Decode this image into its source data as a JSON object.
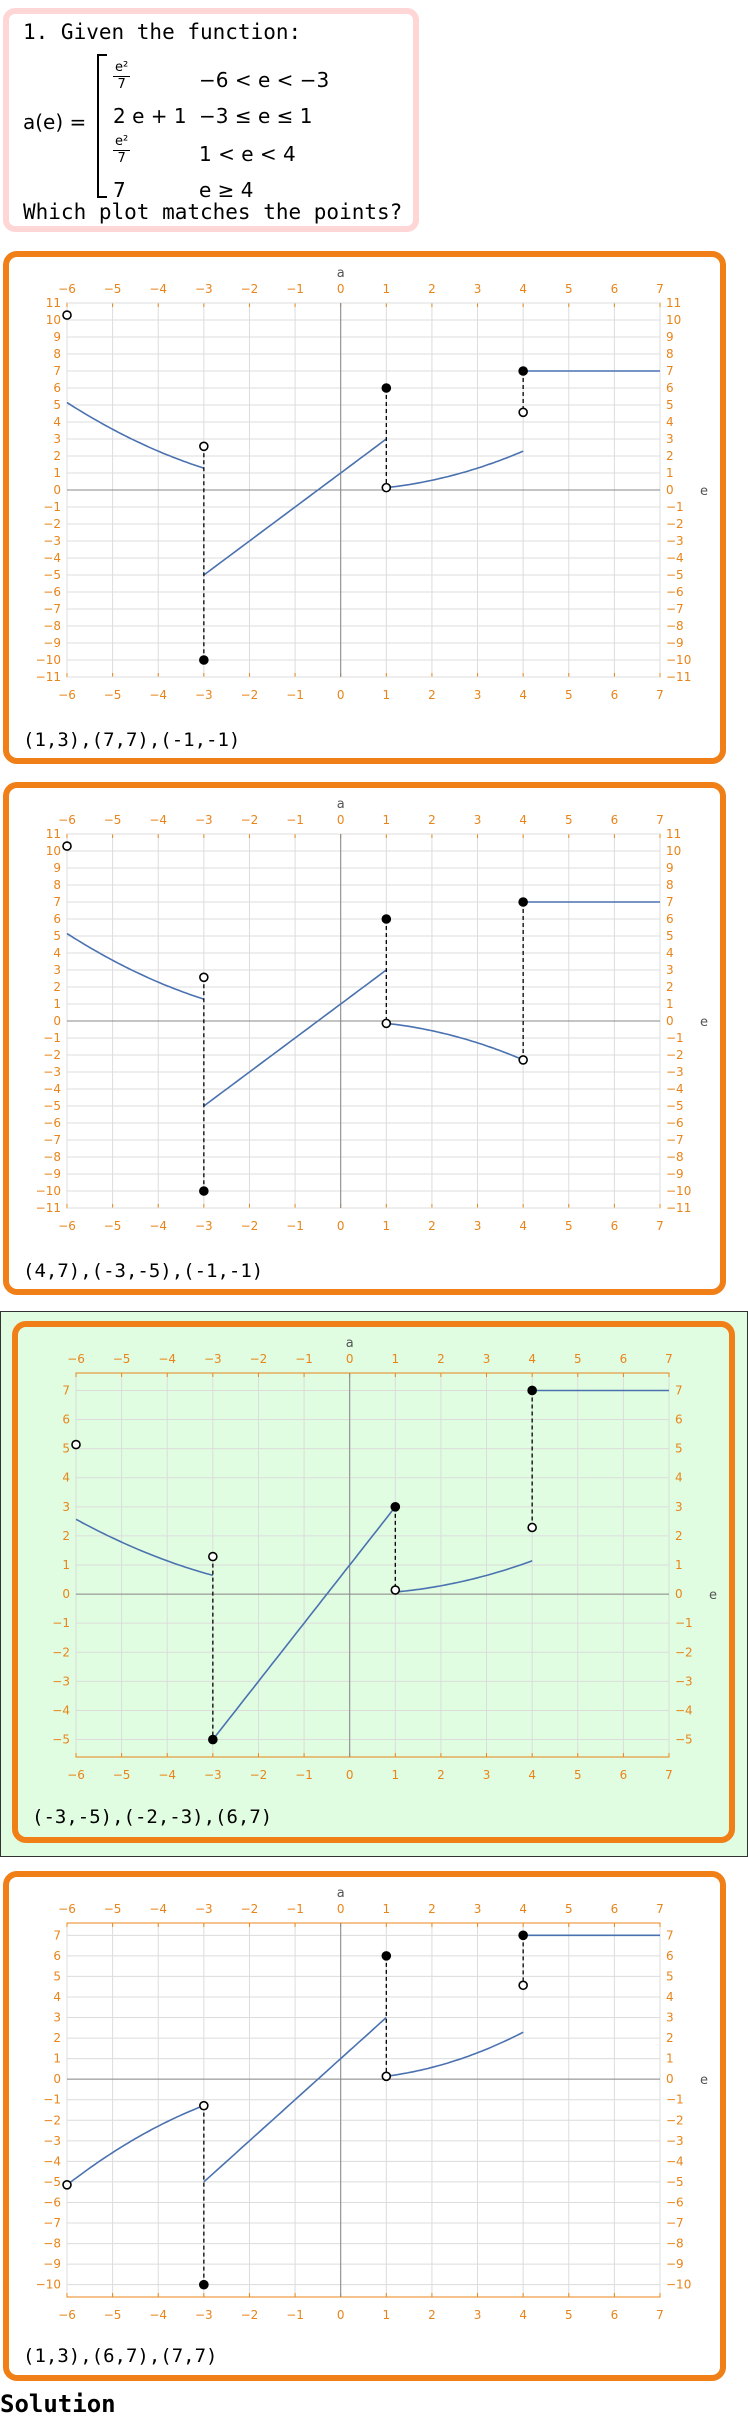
{
  "question": {
    "title": "1. Given the function:",
    "lhs": "a(e) =",
    "pieces": [
      {
        "expr_num": "e²",
        "expr_den": "7",
        "condition": "−6 < e < −3"
      },
      {
        "expr": "2 e + 1",
        "condition": "−3 ≤ e ≤ 1"
      },
      {
        "expr_num": "e²",
        "expr_den": "7",
        "condition": "1 < e < 4"
      },
      {
        "expr": "7",
        "condition": "e ≥ 4"
      }
    ],
    "prompt": "Which plot matches the points?"
  },
  "colors": {
    "accent": "#f07f17",
    "curve": "#4a72b0",
    "question_border": "#ffd6d6",
    "selected_bg": "#e1fde1",
    "tick_label": "#e8841a"
  },
  "plots": [
    {
      "id": "option-1",
      "label": "(1,3),(7,7),(-1,-1)",
      "x_axis_label": "e",
      "y_axis_label": "a",
      "xlim": [
        -6,
        7
      ],
      "ylim": [
        -11,
        11
      ],
      "ytick_step": 1,
      "segments": [
        {
          "kind": "curve",
          "f": "sq7",
          "from": -6,
          "to": -3
        },
        {
          "kind": "curve",
          "f": "lin",
          "from": -3,
          "to": 1
        },
        {
          "kind": "curve",
          "f": "sq7",
          "from": 1,
          "to": 4
        },
        {
          "kind": "curve",
          "f": "const7",
          "from": 4,
          "to": 7
        }
      ],
      "dashes": [
        [
          -3,
          2.57,
          -10
        ],
        [
          1,
          6,
          0.14
        ],
        [
          4,
          7,
          4.57
        ]
      ],
      "points": [
        {
          "x": -6,
          "y": 10.29,
          "filled": false
        },
        {
          "x": -3,
          "y": 2.57,
          "filled": false
        },
        {
          "x": -3,
          "y": -10,
          "filled": true
        },
        {
          "x": 1,
          "y": 6,
          "filled": true
        },
        {
          "x": 1,
          "y": 0.14,
          "filled": false
        },
        {
          "x": 4,
          "y": 4.57,
          "filled": false
        },
        {
          "x": 4,
          "y": 7,
          "filled": true
        }
      ]
    },
    {
      "id": "option-2",
      "label": "(4,7),(-3,-5),(-1,-1)",
      "x_axis_label": "e",
      "y_axis_label": "a",
      "xlim": [
        -6,
        7
      ],
      "ylim": [
        -11,
        11
      ],
      "ytick_step": 1,
      "segments": [
        {
          "kind": "curve",
          "f": "sq7",
          "from": -6,
          "to": -3
        },
        {
          "kind": "curve",
          "f": "lin",
          "from": -3,
          "to": 1
        },
        {
          "kind": "curve",
          "f": "negsq7",
          "from": 1,
          "to": 4
        },
        {
          "kind": "curve",
          "f": "const7",
          "from": 4,
          "to": 7
        }
      ],
      "dashes": [
        [
          -3,
          2.57,
          -10
        ],
        [
          1,
          6,
          -0.14
        ],
        [
          4,
          7,
          -2.29
        ]
      ],
      "points": [
        {
          "x": -6,
          "y": 10.29,
          "filled": false
        },
        {
          "x": -3,
          "y": 2.57,
          "filled": false
        },
        {
          "x": -3,
          "y": -10,
          "filled": true
        },
        {
          "x": 1,
          "y": 6,
          "filled": true
        },
        {
          "x": 1,
          "y": -0.14,
          "filled": false
        },
        {
          "x": 4,
          "y": -2.29,
          "filled": false
        },
        {
          "x": 4,
          "y": 7,
          "filled": true
        }
      ]
    },
    {
      "id": "option-3",
      "label": "(-3,-5),(-2,-3),(6,7)",
      "x_axis_label": "e",
      "y_axis_label": "a",
      "xlim": [
        -6,
        7
      ],
      "ylim": [
        -5.6,
        7.6
      ],
      "ytick_step": 1,
      "segments": [
        {
          "kind": "curve",
          "f": "sq7",
          "from": -6,
          "to": -3,
          "scale": 0.5
        },
        {
          "kind": "curve",
          "f": "lin",
          "from": -3,
          "to": 1
        },
        {
          "kind": "curve",
          "f": "sq7",
          "from": 1,
          "to": 4,
          "scale": 0.5
        },
        {
          "kind": "curve",
          "f": "const7",
          "from": 4,
          "to": 7
        }
      ],
      "dashes": [
        [
          -3,
          1.29,
          -5
        ],
        [
          1,
          3,
          0.14
        ],
        [
          4,
          7,
          2.29
        ]
      ],
      "points": [
        {
          "x": -6,
          "y": 5.14,
          "filled": false
        },
        {
          "x": -3,
          "y": 1.29,
          "filled": false
        },
        {
          "x": -3,
          "y": -5,
          "filled": true
        },
        {
          "x": 1,
          "y": 3,
          "filled": true
        },
        {
          "x": 1,
          "y": 0.14,
          "filled": false
        },
        {
          "x": 4,
          "y": 2.29,
          "filled": false
        },
        {
          "x": 4,
          "y": 7,
          "filled": true
        }
      ]
    },
    {
      "id": "option-4",
      "label": "(1,3),(6,7),(7,7)",
      "x_axis_label": "e",
      "y_axis_label": "a",
      "xlim": [
        -6,
        7
      ],
      "ylim": [
        -10.6,
        7.6
      ],
      "ytick_step": 1,
      "segments": [
        {
          "kind": "curve",
          "f": "negsq7h",
          "from": -6,
          "to": -3
        },
        {
          "kind": "curve",
          "f": "lin",
          "from": -3,
          "to": 1
        },
        {
          "kind": "curve",
          "f": "sq7",
          "from": 1,
          "to": 4
        },
        {
          "kind": "curve",
          "f": "const7",
          "from": 4,
          "to": 7
        }
      ],
      "dashes": [
        [
          -3,
          -1.29,
          -10
        ],
        [
          1,
          6,
          0.14
        ],
        [
          4,
          7,
          4.57
        ]
      ],
      "points": [
        {
          "x": -6,
          "y": -5.14,
          "filled": false
        },
        {
          "x": -3,
          "y": -1.29,
          "filled": false
        },
        {
          "x": -3,
          "y": -10,
          "filled": true
        },
        {
          "x": 1,
          "y": 6,
          "filled": true
        },
        {
          "x": 1,
          "y": 0.14,
          "filled": false
        },
        {
          "x": 4,
          "y": 4.57,
          "filled": false
        },
        {
          "x": 4,
          "y": 7,
          "filled": true
        }
      ]
    }
  ],
  "solution_label": "Solution"
}
